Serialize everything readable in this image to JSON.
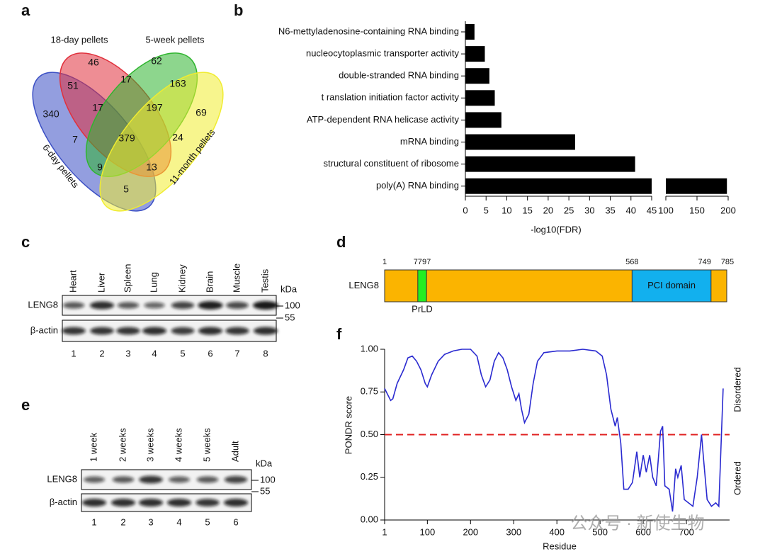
{
  "panel_labels": [
    "a",
    "b",
    "c",
    "d",
    "e",
    "f"
  ],
  "venn": {
    "sets": [
      {
        "label": "6-day pellets",
        "color": "#3b4fc4"
      },
      {
        "label": "18-day pellets",
        "color": "#e0303c"
      },
      {
        "label": "5-week pellets",
        "color": "#2fb52f"
      },
      {
        "label": "11-month pellets",
        "color": "#f0ec30"
      }
    ],
    "counts": [
      46,
      62,
      340,
      69,
      51,
      17,
      163,
      17,
      197,
      379,
      24,
      7,
      9,
      13,
      5
    ]
  },
  "chart_data": [
    {
      "type": "bar",
      "orientation": "horizontal",
      "x_label": "-log10(FDR)",
      "categories": [
        "N6-mettyladenosine-containing RNA binding",
        "nucleocytoplasmic transporter activity",
        "double-stranded RNA binding",
        "t ranslation initiation factor activity",
        "ATP-dependent RNA helicase activity",
        "mRNA binding",
        "structural constituent of ribosome",
        "poly(A) RNA binding"
      ],
      "values": [
        2.2,
        4.7,
        5.8,
        7.1,
        8.7,
        26.5,
        41,
        198
      ],
      "color": "#000000",
      "xlim": [
        0,
        200
      ],
      "xbreak": [
        45,
        100
      ],
      "xticks": [
        0,
        5,
        10,
        15,
        20,
        25,
        30,
        35,
        40,
        45,
        100,
        150,
        200
      ]
    },
    {
      "type": "line",
      "y_label": "PONDR score",
      "x_label": "Residue",
      "color": "#2a2ad0",
      "annotations": [
        "Disordered",
        "Ordered"
      ],
      "threshold": {
        "value": 0.5,
        "color": "#e02020"
      },
      "xlim": [
        1,
        800
      ],
      "xticks": [
        1,
        100,
        200,
        300,
        400,
        500,
        600,
        700
      ],
      "ylim": [
        0,
        1
      ],
      "yticks": [
        {
          "value": 0,
          "label": "0.00"
        },
        {
          "value": 0.25,
          "label": "0.25"
        },
        {
          "value": 0.5,
          "label": "0.50"
        },
        {
          "value": 0.75,
          "label": "0.75"
        },
        {
          "value": 1,
          "label": "1.00"
        }
      ],
      "x": [
        1,
        15,
        20,
        30,
        45,
        55,
        65,
        75,
        85,
        95,
        100,
        110,
        125,
        140,
        160,
        180,
        200,
        215,
        225,
        235,
        245,
        255,
        265,
        275,
        285,
        295,
        305,
        312,
        318,
        325,
        335,
        345,
        355,
        370,
        400,
        430,
        460,
        490,
        505,
        515,
        525,
        535,
        540,
        548,
        555,
        565,
        575,
        585,
        592,
        600,
        607,
        615,
        622,
        630,
        640,
        645,
        650,
        660,
        668,
        675,
        680,
        688,
        695,
        705,
        715,
        725,
        735,
        740,
        748,
        758,
        768,
        775,
        785
      ],
      "values": [
        0.77,
        0.7,
        0.71,
        0.8,
        0.88,
        0.95,
        0.96,
        0.93,
        0.88,
        0.8,
        0.78,
        0.85,
        0.93,
        0.97,
        0.99,
        1.0,
        1.0,
        0.96,
        0.85,
        0.78,
        0.82,
        0.93,
        0.98,
        0.95,
        0.88,
        0.78,
        0.7,
        0.74,
        0.65,
        0.57,
        0.62,
        0.8,
        0.93,
        0.98,
        0.99,
        0.99,
        1.0,
        0.99,
        0.96,
        0.85,
        0.65,
        0.55,
        0.6,
        0.45,
        0.18,
        0.18,
        0.22,
        0.4,
        0.25,
        0.38,
        0.28,
        0.38,
        0.25,
        0.2,
        0.52,
        0.55,
        0.2,
        0.18,
        0.05,
        0.3,
        0.25,
        0.32,
        0.12,
        0.1,
        0.08,
        0.25,
        0.5,
        0.35,
        0.12,
        0.08,
        0.1,
        0.08,
        0.77
      ]
    }
  ],
  "blot_c": {
    "lanes": [
      "Heart",
      "Liver",
      "Spleen",
      "Lung",
      "Kidney",
      "Brain",
      "Muscle",
      "Testis"
    ],
    "lane_numbers": [
      1,
      2,
      3,
      4,
      5,
      6,
      7,
      8
    ],
    "rows": [
      "LENG8",
      "β-actin"
    ],
    "unit": "kDa",
    "markers": [
      100,
      55
    ]
  },
  "blot_d": {
    "lanes": [
      "1 week",
      "2 weeks",
      "3 weeks",
      "4 weeks",
      "5 weeks",
      "Adult"
    ],
    "lane_numbers": [
      1,
      2,
      3,
      4,
      5,
      6
    ],
    "rows": [
      "LENG8",
      "β-actin"
    ],
    "unit": "kDa",
    "markers": [
      100,
      55
    ]
  },
  "protein": {
    "name": "LENG8",
    "start": 1,
    "length": 785,
    "color": "#fbb400",
    "domains": [
      {
        "start": 77,
        "end": 97,
        "label": "PrLD",
        "color": "#22ee22"
      },
      {
        "start": 568,
        "end": 749,
        "label": "PCI domain",
        "color": "#12b0ee"
      }
    ]
  },
  "watermark": "公众号 · 新使生物"
}
